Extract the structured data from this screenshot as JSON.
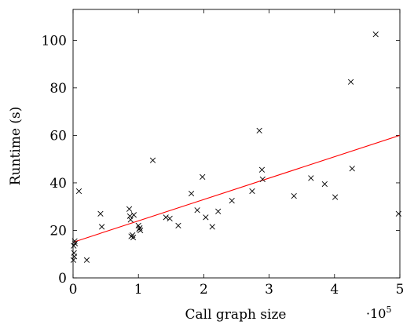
{
  "chart_data": {
    "type": "scatter",
    "xlabel": "Call graph size",
    "ylabel": "Runtime (s)",
    "x_scale_label": {
      "base": "·10",
      "exponent": "5"
    },
    "x_ticks": [
      "0",
      "1",
      "2",
      "3",
      "4",
      "5"
    ],
    "y_ticks": [
      "0",
      "20",
      "40",
      "60",
      "80",
      "100"
    ],
    "xlim": [
      0,
      500000
    ],
    "ylim": [
      0,
      113
    ],
    "grid": false,
    "colors": {
      "points": "#000000",
      "fit_line": "#ff0000"
    },
    "series": [
      {
        "marker": "x",
        "points": [
          [
            500,
            7.5
          ],
          [
            1000,
            13.5
          ],
          [
            1500,
            10.5
          ],
          [
            2000,
            9.0
          ],
          [
            2500,
            15.5
          ],
          [
            3000,
            14.5
          ],
          [
            9000,
            36.5
          ],
          [
            21000,
            7.5
          ],
          [
            42000,
            27.0
          ],
          [
            44000,
            21.5
          ],
          [
            86000,
            29.0
          ],
          [
            87000,
            26.0
          ],
          [
            88000,
            24.5
          ],
          [
            89000,
            17.5
          ],
          [
            91000,
            18.0
          ],
          [
            92000,
            17.0
          ],
          [
            93000,
            26.5
          ],
          [
            100000,
            22.0
          ],
          [
            101000,
            20.5
          ],
          [
            102000,
            21.0
          ],
          [
            103000,
            20.0
          ],
          [
            122000,
            49.5
          ],
          [
            142000,
            25.5
          ],
          [
            148000,
            25.0
          ],
          [
            161000,
            22.0
          ],
          [
            181000,
            35.5
          ],
          [
            190000,
            28.5
          ],
          [
            198000,
            42.5
          ],
          [
            203000,
            25.5
          ],
          [
            213000,
            21.5
          ],
          [
            222000,
            28.0
          ],
          [
            243000,
            32.5
          ],
          [
            274000,
            36.5
          ],
          [
            285000,
            62.0
          ],
          [
            289000,
            45.5
          ],
          [
            290000,
            41.5
          ],
          [
            338000,
            34.5
          ],
          [
            364000,
            42.0
          ],
          [
            385000,
            39.5
          ],
          [
            401000,
            34.0
          ],
          [
            425000,
            82.5
          ],
          [
            427000,
            46.0
          ],
          [
            463000,
            102.5
          ],
          [
            498000,
            27.0
          ]
        ]
      }
    ],
    "fit_line": {
      "x": [
        0,
        500000
      ],
      "y": [
        15,
        60
      ]
    }
  }
}
